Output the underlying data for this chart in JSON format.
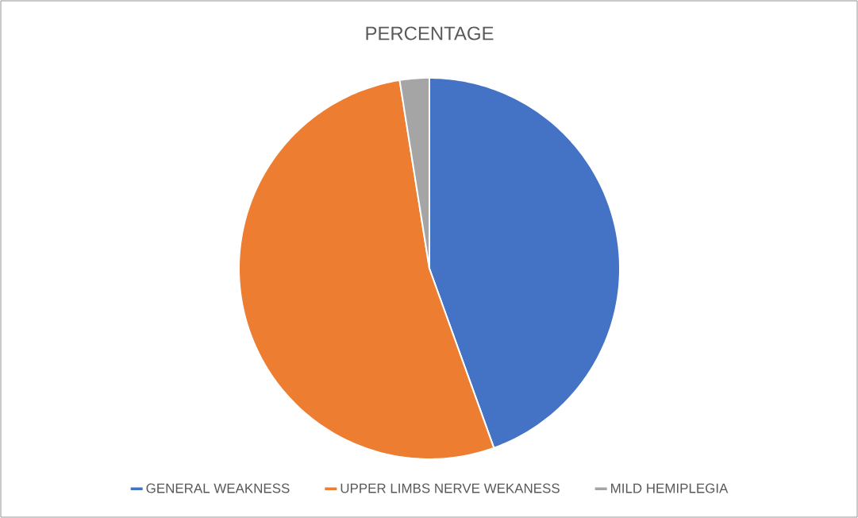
{
  "chart_data": {
    "type": "pie",
    "title": "PERCENTAGE",
    "categories": [
      "GENERAL WEAKNESS",
      "UPPER LIMBS NERVE WEKANESS",
      "MILD HEMIPLEGIA"
    ],
    "values": [
      44.5,
      53,
      2.5
    ],
    "colors": [
      "#4472c4",
      "#ed7d31",
      "#a5a5a5"
    ],
    "legend": "bottom"
  }
}
